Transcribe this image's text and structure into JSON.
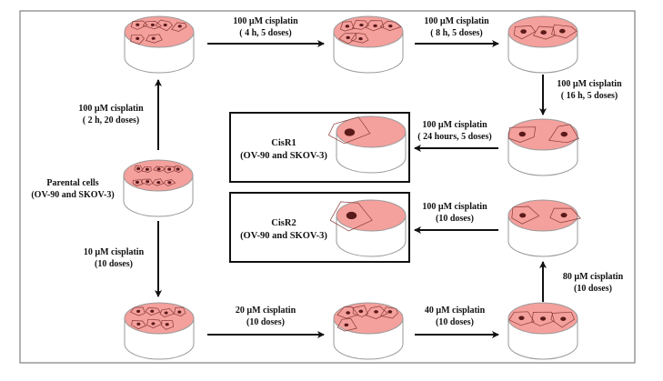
{
  "colors": {
    "dish_top": "#f4a09c",
    "cell_outline": "#8a3a38",
    "nucleus": "#5a1a1a",
    "arrow": "#111111",
    "frame": "#666666"
  },
  "steps": {
    "step_2h": {
      "line1": "100 µM cisplatin",
      "line2": "( 2 h, 20 doses)"
    },
    "step_4h": {
      "line1": "100 µM cisplatin",
      "line2": "( 4 h, 5 doses)"
    },
    "step_8h": {
      "line1": "100 µM cisplatin",
      "line2": "( 8 h, 5 doses)"
    },
    "step_16h": {
      "line1": "100 µM cisplatin",
      "line2": "( 16 h, 5 doses)"
    },
    "step_24h": {
      "line1": "100 µM cisplatin",
      "line2": "( 24 hours, 5 doses)"
    },
    "step_10uM": {
      "line1": "10 µM cisplatin",
      "line2": "(10 doses)"
    },
    "step_20uM": {
      "line1": "20 µM cisplatin",
      "line2": "(10 doses)"
    },
    "step_40uM": {
      "line1": "40 µM cisplatin",
      "line2": "(10 doses)"
    },
    "step_80uM": {
      "line1": "80 µM cisplatin",
      "line2": "(10 doses)"
    },
    "step_100uM_10": {
      "line1": "100 µM cisplatin",
      "line2": "(10 doses)"
    }
  },
  "nodes": {
    "parental": {
      "line1": "Parental cells",
      "line2": "(OV-90 and SKOV-3)"
    },
    "cisr1": {
      "line1": "CisR1",
      "line2": "(OV-90 and SKOV-3)"
    },
    "cisr2": {
      "line1": "CisR2",
      "line2": "(OV-90 and SKOV-3)"
    }
  }
}
